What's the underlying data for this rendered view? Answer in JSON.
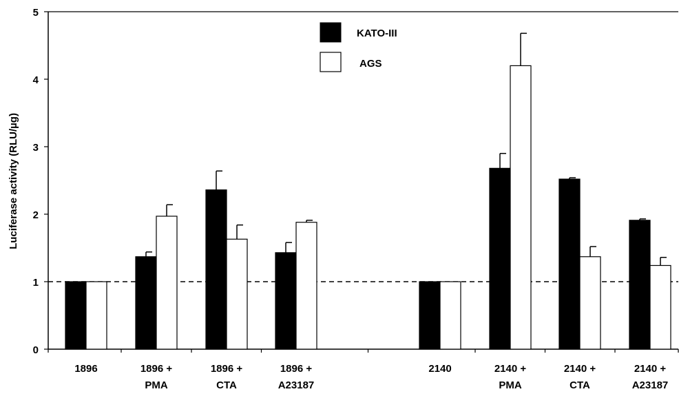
{
  "chart_data": {
    "type": "bar",
    "ylabel": "Luciferase activity (RLU/µg)",
    "ylim": [
      0,
      5
    ],
    "yticks": [
      0,
      1,
      2,
      3,
      4,
      5
    ],
    "reference_line": 1,
    "legend_position": "top-center",
    "categories": [
      [
        "1896"
      ],
      [
        "1896 +",
        "PMA"
      ],
      [
        "1896 +",
        "CTA"
      ],
      [
        "1896 +",
        "A23187"
      ],
      [
        "2140"
      ],
      [
        "2140 +",
        "PMA"
      ],
      [
        "2140 +",
        "CTA"
      ],
      [
        "2140 +",
        "A23187"
      ]
    ],
    "series": [
      {
        "name": "KATO-III",
        "color": "#000000",
        "values": [
          1.0,
          1.37,
          2.36,
          1.43,
          1.0,
          2.68,
          2.52,
          1.91
        ],
        "errors": [
          0,
          0.07,
          0.28,
          0.15,
          0,
          0.22,
          0.02,
          0.02
        ]
      },
      {
        "name": "AGS",
        "color": "#ffffff",
        "values": [
          1.0,
          1.97,
          1.63,
          1.88,
          1.0,
          4.2,
          1.37,
          1.24
        ],
        "errors": [
          0,
          0.17,
          0.21,
          0.03,
          0,
          0.48,
          0.15,
          0.12
        ]
      }
    ]
  }
}
